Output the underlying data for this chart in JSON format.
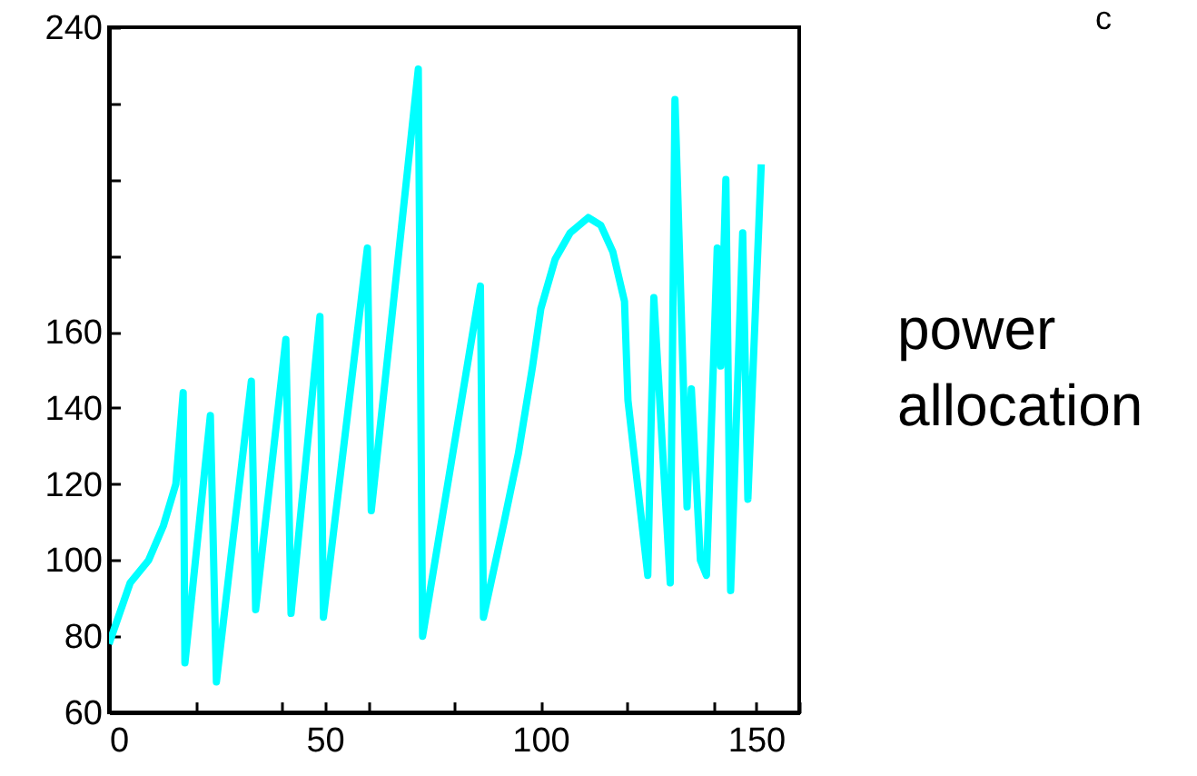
{
  "chart_data": {
    "type": "line",
    "annotations": [
      "c",
      "power allocation"
    ],
    "x": [
      0,
      4.9,
      9.2,
      12.6,
      15.5,
      17.2,
      17.6,
      23.5,
      24.9,
      33,
      34,
      41,
      42.2,
      48.9,
      49.7,
      59.9,
      60.8,
      71.7,
      72.7,
      86.1,
      86.8,
      91.4,
      94.9,
      98.2,
      100.1,
      103.4,
      106.9,
      111.1,
      114,
      116.8,
      119.5,
      120.3,
      124.9,
      126.3,
      130.1,
      131.2,
      134,
      135,
      137.1,
      138.5,
      141,
      141.8,
      143,
      144.1,
      146.9,
      148.1,
      151.2
    ],
    "series": [
      {
        "color": "#00ffff",
        "values": [
          78,
          94,
          100,
          109,
          120,
          144,
          73,
          138,
          68,
          147,
          87,
          158,
          86,
          164,
          85,
          182,
          113,
          229,
          80,
          172,
          85,
          109,
          128,
          151,
          166,
          179,
          186,
          190,
          188,
          181,
          168,
          142,
          96,
          169,
          94,
          221,
          114,
          145,
          100,
          96,
          182,
          151,
          200,
          92,
          186,
          116,
          204
        ]
      }
    ],
    "xlim": [
      0,
      160
    ],
    "xticks": [
      0,
      {
        "value": 20,
        "label": null
      },
      {
        "value": 40,
        "label": null
      },
      50,
      {
        "value": 60,
        "label": null
      },
      {
        "value": 80,
        "label": null
      },
      100,
      {
        "value": 120,
        "label": null
      },
      {
        "value": 140,
        "label": null
      },
      150,
      {
        "value": 160,
        "label": null
      }
    ],
    "ylim": [
      60,
      240
    ],
    "yticks": [
      60,
      80,
      100,
      120,
      140,
      160,
      {
        "value": 180,
        "label": null
      },
      {
        "value": 200,
        "label": null
      },
      {
        "value": 220,
        "label": null
      },
      240
    ],
    "marker": "none",
    "line_style": "solid",
    "grid": false
  }
}
